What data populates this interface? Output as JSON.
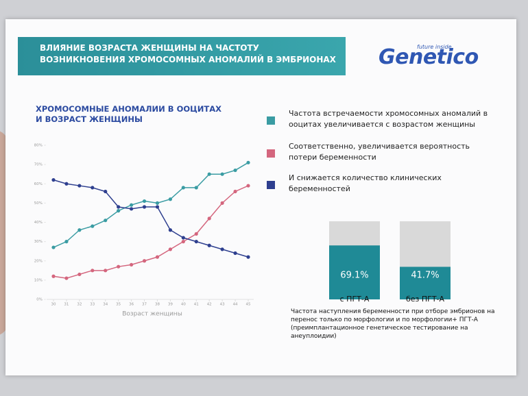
{
  "header": {
    "title": "ВЛИЯНИЕ ВОЗРАСТА ЖЕНЩИНЫ НА ЧАСТОТУ ВОЗНИКНОВЕНИЯ ХРОМОСОМНЫХ АНОМАЛИЙ В ЭМБРИОНАХ"
  },
  "logo": {
    "name": "Genetico",
    "tagline": "future inside"
  },
  "chart_data": [
    {
      "type": "line",
      "title": "ХРОМОСОМНЫЕ АНОМАЛИИ В ООЦИТАХ И ВОЗРАСТ ЖЕНЩИНЫ",
      "x_label": "Возраст женщины",
      "x": [
        30,
        31,
        32,
        33,
        34,
        35,
        36,
        37,
        38,
        39,
        40,
        41,
        42,
        43,
        44,
        45
      ],
      "xlim": [
        30,
        45
      ],
      "xticks": [
        30,
        31,
        32,
        33,
        34,
        35,
        36,
        37,
        38,
        39,
        40,
        41,
        42,
        43,
        44,
        45
      ],
      "ylim": [
        0,
        80
      ],
      "yticks": [
        {
          "value": 0,
          "label": "0%"
        },
        {
          "value": 10,
          "label": "10%"
        },
        {
          "value": 20,
          "label": "20%"
        },
        {
          "value": 30,
          "label": "30%"
        },
        {
          "value": 40,
          "label": "40%"
        },
        {
          "value": 50,
          "label": "50%"
        },
        {
          "value": 60,
          "label": "60%"
        },
        {
          "value": 70,
          "label": "70%"
        },
        {
          "value": 80,
          "label": "80%"
        }
      ],
      "series": [
        {
          "name": "Частота встречаемости хромосомных аномалий в ооцитах увеличивается с возрастом женщины",
          "color": "#3a9ca3",
          "values": [
            27,
            30,
            36,
            38,
            41,
            46,
            49,
            51,
            50,
            52,
            58,
            58,
            65,
            65,
            67,
            71
          ]
        },
        {
          "name": "Соответственно, увеличивается вероятность потери беременности",
          "color": "#d4667e",
          "values": [
            12,
            11,
            13,
            15,
            15,
            17,
            18,
            20,
            22,
            26,
            30,
            34,
            42,
            50,
            56,
            59
          ]
        },
        {
          "name": "И снижается количество клинических беременностей",
          "color": "#2e3f8f",
          "values": [
            62,
            60,
            59,
            58,
            56,
            48,
            47,
            48,
            48,
            36,
            32,
            30,
            28,
            26,
            24,
            22
          ]
        }
      ]
    },
    {
      "type": "bar",
      "title": "Частота наступления беременности при отборе эмбрионов на перенос только по морфологии и по морфологии+ ПГТ-А (преимплантационное генетическое тестирование на анеуплоидии)",
      "categories": [
        "с ПГТ-А",
        "без ПГТ-А"
      ],
      "values": [
        69.1,
        41.7
      ],
      "value_labels": [
        "69.1%",
        "41.7%"
      ],
      "ylim": [
        0,
        100
      ],
      "color": "#1f8a96",
      "background_color": "#d9d9d9"
    }
  ]
}
